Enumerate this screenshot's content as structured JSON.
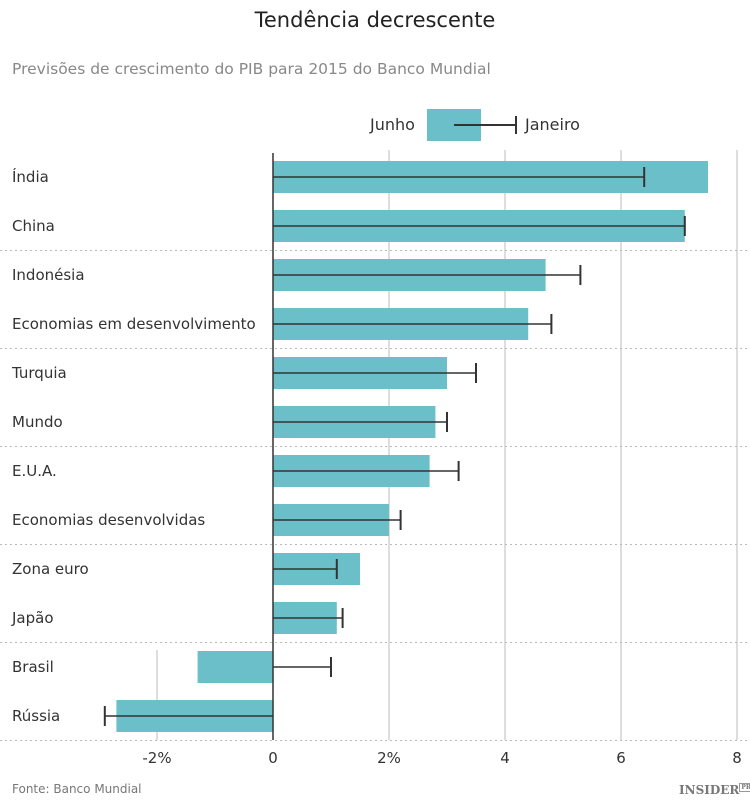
{
  "chart_data": {
    "type": "bar",
    "orientation": "horizontal",
    "title": "Tendência decrescente",
    "subtitle": "Previsões de crescimento do PIB para 2015 do Banco Mundial",
    "categories": [
      "Índia",
      "China",
      "Indonésia",
      "Economias em desenvolvimento",
      "Turquia",
      "Mundo",
      "E.U.A.",
      "Economias desenvolvidas",
      "Zona euro",
      "Japão",
      "Brasil",
      "Rússia"
    ],
    "series": [
      {
        "name": "Junho",
        "kind": "bar",
        "values": [
          7.5,
          7.1,
          4.7,
          4.4,
          3.0,
          2.8,
          2.7,
          2.0,
          1.5,
          1.1,
          -1.3,
          -2.7
        ]
      },
      {
        "name": "Janeiro",
        "kind": "errorbar",
        "values": [
          6.4,
          7.1,
          5.3,
          4.8,
          3.5,
          3.0,
          3.2,
          2.2,
          1.1,
          1.2,
          1.0,
          -2.9
        ]
      }
    ],
    "xlim": [
      -2,
      8
    ],
    "xticks": [
      -2,
      0,
      2,
      4,
      6,
      8
    ],
    "xtick_labels": [
      "-2%",
      "0",
      "2%",
      "4",
      "6",
      "8"
    ],
    "grid": "vertical",
    "legend": "top-center",
    "colors": {
      "bar": "#6abfc8",
      "errorbar": "#333333",
      "grid": "#dddddd"
    }
  },
  "source": "Fonte: Banco Mundial",
  "logo": "INSIDER PRO"
}
